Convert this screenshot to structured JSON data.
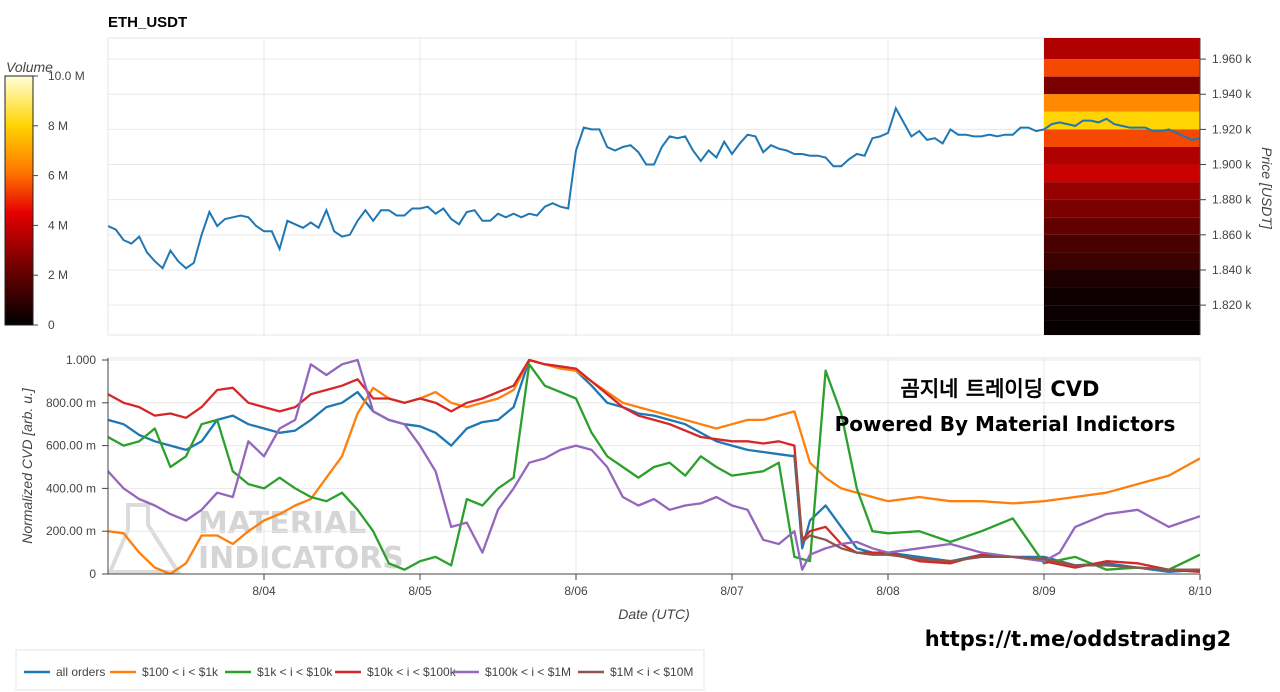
{
  "title": "ETH_USDT",
  "watermark": {
    "line1": "MATERIAL",
    "line2": "INDICATORS"
  },
  "overlay": {
    "line1": "곰지네 트레이딩 CVD",
    "line2": "Powered By Material Indictors"
  },
  "url": "https://t.me/oddstrading2",
  "colorbar": {
    "title": "Volume",
    "ticks": [
      "10.0 M",
      "8 M",
      "6 M",
      "4 M",
      "2 M",
      "0"
    ],
    "values": [
      10,
      8,
      6,
      4,
      2,
      0
    ]
  },
  "colors": {
    "all": "#1f77b4",
    "o100": "#ff7f0e",
    "o1k": "#2ca02c",
    "o10k": "#d62728",
    "o100k": "#9467bd",
    "o1m": "#8c564b"
  },
  "chart_data": [
    {
      "type": "line",
      "ylabel": "Price [USDT]",
      "ylim": [
        1803,
        1972
      ],
      "yticks": [
        "1.820 k",
        "1.840 k",
        "1.860 k",
        "1.880 k",
        "1.900 k",
        "1.920 k",
        "1.940 k",
        "1.960 k"
      ],
      "ytick_values": [
        1820,
        1840,
        1860,
        1880,
        1900,
        1920,
        1940,
        1960
      ],
      "xlim": [
        0,
        7
      ],
      "grid": true,
      "heatmap": {
        "x_start": 6.0,
        "levels": [
          1965,
          1955,
          1945,
          1935,
          1925,
          1915,
          1905,
          1895,
          1885,
          1875,
          1865,
          1855,
          1845,
          1835,
          1825,
          1815,
          1807
        ],
        "volume_m": [
          3.5,
          5.5,
          2.5,
          6.5,
          8,
          5.5,
          3.5,
          4,
          3,
          2.5,
          2,
          1.5,
          1.2,
          0.6,
          0.3,
          0.2,
          0.15
        ]
      },
      "series": [
        {
          "name": "price",
          "x": [
            0,
            0.05,
            0.1,
            0.15,
            0.2,
            0.25,
            0.3,
            0.35,
            0.4,
            0.45,
            0.5,
            0.55,
            0.6,
            0.65,
            0.7,
            0.75,
            0.8,
            0.85,
            0.9,
            0.95,
            1.0,
            1.05,
            1.1,
            1.15,
            1.2,
            1.25,
            1.3,
            1.35,
            1.4,
            1.45,
            1.5,
            1.55,
            1.6,
            1.65,
            1.7,
            1.75,
            1.8,
            1.85,
            1.9,
            1.95,
            2.0,
            2.05,
            2.1,
            2.15,
            2.2,
            2.25,
            2.3,
            2.35,
            2.4,
            2.45,
            2.5,
            2.55,
            2.6,
            2.65,
            2.7,
            2.75,
            2.8,
            2.85,
            2.9,
            2.95,
            3.0,
            3.05,
            3.1,
            3.15,
            3.2,
            3.25,
            3.3,
            3.35,
            3.4,
            3.45,
            3.5,
            3.55,
            3.6,
            3.65,
            3.7,
            3.75,
            3.8,
            3.85,
            3.9,
            3.95,
            4.0,
            4.05,
            4.1,
            4.15,
            4.2,
            4.25,
            4.3,
            4.35,
            4.4,
            4.45,
            4.5,
            4.55,
            4.6,
            4.65,
            4.7,
            4.75,
            4.8,
            4.85,
            4.9,
            4.95,
            5.0,
            5.05,
            5.1,
            5.15,
            5.2,
            5.25,
            5.3,
            5.35,
            5.4,
            5.45,
            5.5,
            5.55,
            5.6,
            5.65,
            5.7,
            5.75,
            5.8,
            5.85,
            5.9,
            5.95,
            6.0,
            6.05,
            6.1,
            6.15,
            6.2,
            6.25,
            6.3,
            6.35,
            6.4,
            6.45,
            6.5,
            6.55,
            6.6,
            6.65,
            6.7,
            6.75,
            6.8,
            6.85,
            6.9,
            6.95,
            7.0
          ],
          "y": [
            1865,
            1863,
            1857,
            1855,
            1859,
            1850,
            1845,
            1841,
            1851,
            1845,
            1841,
            1844,
            1860,
            1873,
            1865,
            1869,
            1870,
            1871,
            1870,
            1865,
            1862,
            1862,
            1852,
            1868,
            1866,
            1864,
            1867,
            1864,
            1874,
            1862,
            1859,
            1860,
            1868,
            1874,
            1868,
            1874,
            1874,
            1871,
            1871,
            1875,
            1875,
            1876,
            1872,
            1875,
            1869,
            1866,
            1873,
            1874,
            1868,
            1868,
            1872,
            1870,
            1872,
            1870,
            1872,
            1871,
            1876,
            1878,
            1876,
            1875,
            1908,
            1921,
            1920,
            1920,
            1910,
            1908,
            1910,
            1911,
            1907,
            1900,
            1900,
            1910,
            1916,
            1915,
            1916,
            1908,
            1902,
            1908,
            1904,
            1913,
            1906,
            1912,
            1917,
            1916,
            1907,
            1911,
            1909,
            1908,
            1906,
            1906,
            1905,
            1905,
            1904,
            1899,
            1899,
            1903,
            1906,
            1905,
            1915,
            1916,
            1918,
            1932,
            1924,
            1916,
            1919,
            1914,
            1915,
            1912,
            1920,
            1917,
            1917,
            1916,
            1916,
            1917,
            1916,
            1917,
            1917,
            1921,
            1921,
            1919,
            1920,
            1923,
            1924,
            1923,
            1922,
            1925,
            1925,
            1924,
            1926,
            1923,
            1922,
            1921,
            1921,
            1921,
            1919,
            1919,
            1920,
            1918,
            1916,
            1914,
            1915
          ]
        }
      ]
    },
    {
      "type": "line",
      "xlabel": "Date (UTC)",
      "ylabel": "Normalized CVD [arb. u.]",
      "ylim": [
        0,
        1
      ],
      "yticks": [
        "0",
        "200.00 m",
        "400.00 m",
        "600.00 m",
        "800.00 m",
        "1.000"
      ],
      "ytick_values": [
        0,
        0.2,
        0.4,
        0.6,
        0.8,
        1.0
      ],
      "xlim": [
        0,
        7
      ],
      "xticks": [
        "8/04",
        "8/05",
        "8/06",
        "8/07",
        "8/08",
        "8/09",
        "8/10"
      ],
      "xtick_values": [
        1,
        2,
        3,
        4,
        5,
        6,
        7
      ],
      "grid": true,
      "legend_position": "bottom-left",
      "legend": [
        "all orders",
        "$100 < i < $1k",
        "$1k < i < $10k",
        "$10k < i < $100k",
        "$100k < i < $1M",
        "$1M < i < $10M"
      ],
      "series": [
        {
          "name": "all orders",
          "x": [
            0,
            0.1,
            0.2,
            0.3,
            0.4,
            0.5,
            0.6,
            0.7,
            0.8,
            0.9,
            1.0,
            1.1,
            1.2,
            1.3,
            1.4,
            1.5,
            1.6,
            1.7,
            1.8,
            1.9,
            2.0,
            2.1,
            2.2,
            2.3,
            2.4,
            2.5,
            2.6,
            2.7,
            2.8,
            2.9,
            3.0,
            3.1,
            3.2,
            3.3,
            3.4,
            3.5,
            3.6,
            3.7,
            3.8,
            3.9,
            4.0,
            4.1,
            4.2,
            4.3,
            4.4,
            4.45,
            4.5,
            4.6,
            4.7,
            4.8,
            4.9,
            5.0,
            5.2,
            5.4,
            5.6,
            5.8,
            6.0,
            6.2,
            6.4,
            6.6,
            6.8,
            7.0
          ],
          "y": [
            0.72,
            0.7,
            0.65,
            0.62,
            0.6,
            0.58,
            0.62,
            0.72,
            0.74,
            0.7,
            0.68,
            0.66,
            0.67,
            0.72,
            0.78,
            0.8,
            0.85,
            0.76,
            0.72,
            0.7,
            0.69,
            0.66,
            0.6,
            0.68,
            0.71,
            0.72,
            0.78,
            1.0,
            0.98,
            0.97,
            0.95,
            0.88,
            0.8,
            0.78,
            0.75,
            0.74,
            0.72,
            0.7,
            0.66,
            0.62,
            0.6,
            0.58,
            0.57,
            0.56,
            0.55,
            0.12,
            0.25,
            0.32,
            0.22,
            0.12,
            0.1,
            0.1,
            0.08,
            0.06,
            0.09,
            0.08,
            0.08,
            0.04,
            0.05,
            0.03,
            0.01,
            0.02
          ]
        },
        {
          "name": "$100 < i < $1k",
          "x": [
            0,
            0.1,
            0.2,
            0.3,
            0.4,
            0.5,
            0.6,
            0.7,
            0.8,
            0.9,
            1.0,
            1.1,
            1.2,
            1.3,
            1.4,
            1.5,
            1.6,
            1.7,
            1.8,
            1.9,
            2.0,
            2.1,
            2.2,
            2.3,
            2.4,
            2.5,
            2.6,
            2.7,
            2.8,
            2.9,
            3.0,
            3.1,
            3.2,
            3.3,
            3.4,
            3.5,
            3.6,
            3.7,
            3.8,
            3.9,
            4.0,
            4.1,
            4.2,
            4.3,
            4.4,
            4.5,
            4.6,
            4.7,
            4.8,
            4.9,
            5.0,
            5.2,
            5.4,
            5.6,
            5.8,
            6.0,
            6.2,
            6.4,
            6.6,
            6.8,
            7.0
          ],
          "y": [
            0.2,
            0.19,
            0.1,
            0.03,
            0.0,
            0.05,
            0.18,
            0.18,
            0.14,
            0.2,
            0.25,
            0.28,
            0.32,
            0.35,
            0.45,
            0.55,
            0.75,
            0.87,
            0.82,
            0.8,
            0.82,
            0.85,
            0.8,
            0.78,
            0.8,
            0.82,
            0.86,
            1.0,
            0.98,
            0.96,
            0.95,
            0.9,
            0.85,
            0.8,
            0.78,
            0.76,
            0.74,
            0.72,
            0.7,
            0.68,
            0.7,
            0.72,
            0.72,
            0.74,
            0.76,
            0.52,
            0.45,
            0.4,
            0.38,
            0.36,
            0.34,
            0.36,
            0.34,
            0.34,
            0.33,
            0.34,
            0.36,
            0.38,
            0.42,
            0.46,
            0.54
          ]
        },
        {
          "name": "$1k < i < $10k",
          "x": [
            0,
            0.1,
            0.2,
            0.3,
            0.4,
            0.5,
            0.6,
            0.7,
            0.8,
            0.9,
            1.0,
            1.1,
            1.2,
            1.3,
            1.4,
            1.5,
            1.6,
            1.7,
            1.8,
            1.9,
            2.0,
            2.1,
            2.2,
            2.3,
            2.4,
            2.5,
            2.6,
            2.7,
            2.8,
            2.9,
            3.0,
            3.1,
            3.2,
            3.3,
            3.4,
            3.5,
            3.6,
            3.7,
            3.8,
            3.9,
            4.0,
            4.1,
            4.2,
            4.3,
            4.4,
            4.5,
            4.6,
            4.7,
            4.8,
            4.9,
            5.0,
            5.2,
            5.4,
            5.6,
            5.8,
            6.0,
            6.2,
            6.4,
            6.6,
            6.8,
            7.0
          ],
          "y": [
            0.64,
            0.6,
            0.62,
            0.68,
            0.5,
            0.55,
            0.7,
            0.72,
            0.48,
            0.42,
            0.4,
            0.45,
            0.4,
            0.36,
            0.34,
            0.38,
            0.3,
            0.2,
            0.05,
            0.02,
            0.06,
            0.08,
            0.04,
            0.35,
            0.32,
            0.4,
            0.45,
            0.98,
            0.88,
            0.85,
            0.82,
            0.66,
            0.55,
            0.5,
            0.45,
            0.5,
            0.52,
            0.46,
            0.55,
            0.5,
            0.46,
            0.47,
            0.48,
            0.52,
            0.08,
            0.06,
            0.95,
            0.75,
            0.4,
            0.2,
            0.19,
            0.2,
            0.15,
            0.2,
            0.26,
            0.05,
            0.08,
            0.02,
            0.03,
            0.02,
            0.09
          ]
        },
        {
          "name": "$10k < i < $100k",
          "x": [
            0,
            0.1,
            0.2,
            0.3,
            0.4,
            0.5,
            0.6,
            0.7,
            0.8,
            0.9,
            1.0,
            1.1,
            1.2,
            1.3,
            1.4,
            1.5,
            1.6,
            1.7,
            1.8,
            1.9,
            2.0,
            2.1,
            2.2,
            2.3,
            2.4,
            2.5,
            2.6,
            2.7,
            2.8,
            2.9,
            3.0,
            3.1,
            3.2,
            3.3,
            3.4,
            3.5,
            3.6,
            3.7,
            3.8,
            3.9,
            4.0,
            4.1,
            4.2,
            4.3,
            4.4,
            4.45,
            4.5,
            4.6,
            4.7,
            4.8,
            4.9,
            5.0,
            5.2,
            5.4,
            5.6,
            5.8,
            6.0,
            6.2,
            6.4,
            6.6,
            6.8,
            7.0
          ],
          "y": [
            0.84,
            0.8,
            0.78,
            0.74,
            0.75,
            0.73,
            0.78,
            0.86,
            0.87,
            0.8,
            0.78,
            0.76,
            0.78,
            0.84,
            0.86,
            0.88,
            0.91,
            0.82,
            0.82,
            0.8,
            0.82,
            0.8,
            0.76,
            0.8,
            0.82,
            0.85,
            0.88,
            1.0,
            0.98,
            0.97,
            0.96,
            0.9,
            0.84,
            0.78,
            0.74,
            0.72,
            0.7,
            0.67,
            0.64,
            0.63,
            0.62,
            0.62,
            0.61,
            0.62,
            0.6,
            0.16,
            0.2,
            0.22,
            0.14,
            0.1,
            0.1,
            0.1,
            0.06,
            0.05,
            0.09,
            0.08,
            0.06,
            0.03,
            0.06,
            0.05,
            0.02,
            0.01
          ]
        },
        {
          "name": "$100k < i < $1M",
          "x": [
            0,
            0.1,
            0.2,
            0.3,
            0.4,
            0.5,
            0.6,
            0.7,
            0.8,
            0.9,
            1.0,
            1.1,
            1.2,
            1.3,
            1.4,
            1.5,
            1.6,
            1.7,
            1.8,
            1.9,
            2.0,
            2.1,
            2.2,
            2.3,
            2.4,
            2.5,
            2.6,
            2.7,
            2.8,
            2.9,
            3.0,
            3.1,
            3.2,
            3.3,
            3.4,
            3.5,
            3.6,
            3.7,
            3.8,
            3.9,
            4.0,
            4.1,
            4.2,
            4.3,
            4.4,
            4.45,
            4.5,
            4.6,
            4.7,
            4.8,
            4.9,
            5.0,
            5.2,
            5.4,
            5.6,
            5.8,
            6.0,
            6.1,
            6.2,
            6.4,
            6.6,
            6.8,
            7.0
          ],
          "y": [
            0.48,
            0.4,
            0.35,
            0.32,
            0.28,
            0.25,
            0.3,
            0.38,
            0.36,
            0.62,
            0.55,
            0.68,
            0.72,
            0.98,
            0.93,
            0.98,
            1.0,
            0.76,
            0.72,
            0.7,
            0.6,
            0.48,
            0.22,
            0.24,
            0.1,
            0.3,
            0.4,
            0.52,
            0.54,
            0.58,
            0.6,
            0.58,
            0.5,
            0.36,
            0.32,
            0.35,
            0.3,
            0.32,
            0.33,
            0.36,
            0.32,
            0.3,
            0.16,
            0.14,
            0.2,
            0.02,
            0.09,
            0.12,
            0.14,
            0.15,
            0.12,
            0.1,
            0.12,
            0.14,
            0.1,
            0.08,
            0.06,
            0.1,
            0.22,
            0.28,
            0.3,
            0.22,
            0.27
          ]
        },
        {
          "name": "$1M < i < $10M",
          "x": [
            4.4,
            4.45,
            4.5,
            4.6,
            4.7,
            4.8,
            4.9,
            5.0,
            5.2,
            5.4,
            5.6,
            5.8,
            6.0,
            6.2,
            6.4,
            6.6,
            6.8,
            7.0
          ],
          "y": [
            0.56,
            0.15,
            0.18,
            0.16,
            0.12,
            0.1,
            0.09,
            0.09,
            0.07,
            0.06,
            0.08,
            0.08,
            0.07,
            0.04,
            0.04,
            0.03,
            0.02,
            0.02
          ]
        }
      ]
    }
  ]
}
